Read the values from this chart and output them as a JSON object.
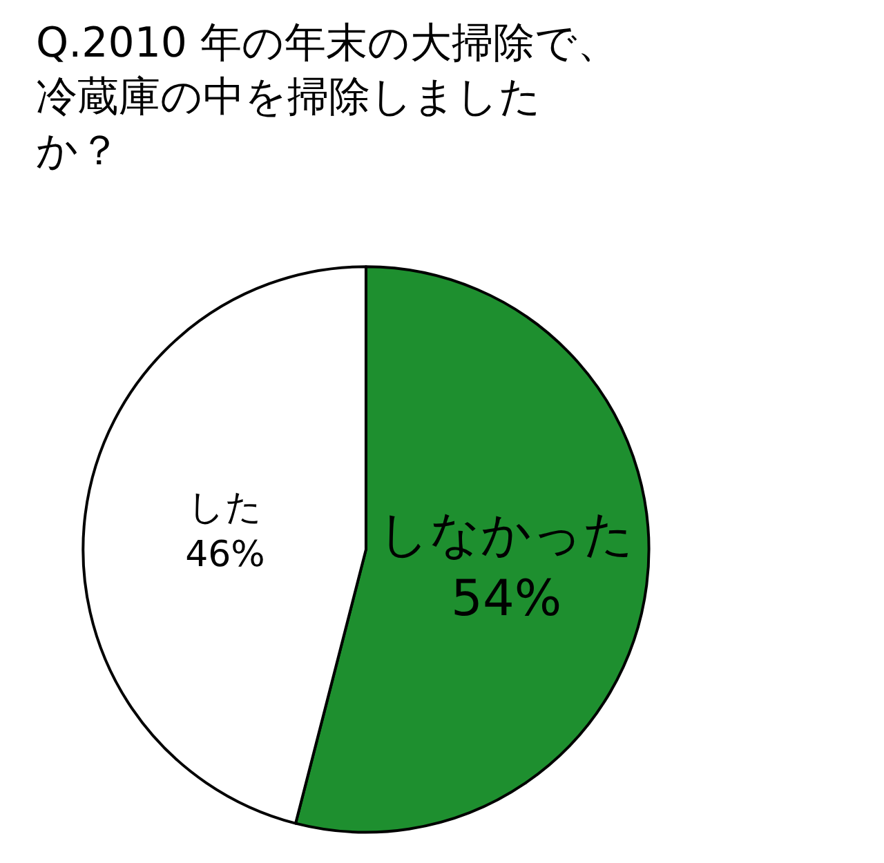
{
  "chart_data": {
    "type": "pie",
    "title": "Q.2010 年の年末の大掃除で、冷蔵庫の中を掃除しましたか？",
    "categories": [
      "しなかった",
      "した"
    ],
    "values": [
      54,
      46
    ],
    "value_labels": [
      "54%",
      "46%"
    ],
    "colors": [
      "#1e8f2f",
      "#ffffff"
    ],
    "legend": false
  }
}
